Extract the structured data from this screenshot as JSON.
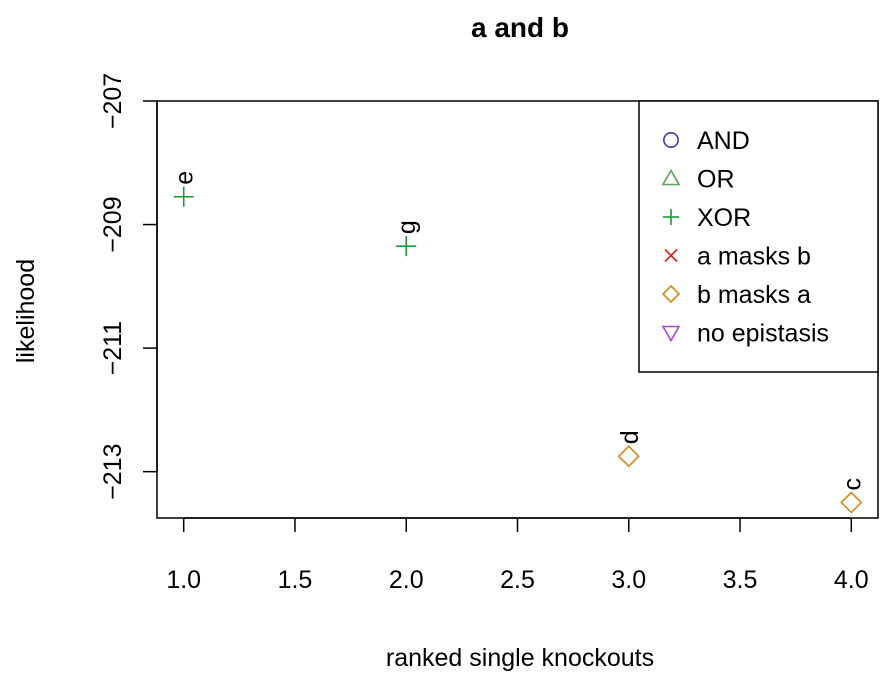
{
  "chart_data": {
    "type": "scatter",
    "title": "a and b",
    "xlabel": "ranked single knockouts",
    "ylabel": "likelihood",
    "xlim": [
      0.88,
      4.12
    ],
    "ylim": [
      -213.75,
      -207.0
    ],
    "x_ticks": [
      1.0,
      1.5,
      2.0,
      2.5,
      3.0,
      3.5,
      4.0
    ],
    "x_tick_labels": [
      "1.0",
      "1.5",
      "2.0",
      "2.5",
      "3.0",
      "3.5",
      "4.0"
    ],
    "y_ticks": [
      -207,
      -209,
      -211,
      -213
    ],
    "y_tick_labels": [
      "−207",
      "−209",
      "−211",
      "−213"
    ],
    "grid": false,
    "legend_position": "top-right",
    "legend": [
      {
        "label": "AND",
        "symbol": "circle",
        "color": "#3b3bb3"
      },
      {
        "label": "OR",
        "symbol": "triangle-up",
        "color": "#5aa05a"
      },
      {
        "label": "XOR",
        "symbol": "plus",
        "color": "#1a9a3a"
      },
      {
        "label": "a masks b",
        "symbol": "cross",
        "color": "#e31a1c"
      },
      {
        "label": "b masks a",
        "symbol": "diamond",
        "color": "#d9861a"
      },
      {
        "label": "no epistasis",
        "symbol": "triangle-down",
        "color": "#a64ac9"
      }
    ],
    "points": [
      {
        "x": 1,
        "y": -208.55,
        "label": "e",
        "symbol": "plus",
        "color": "#1a9a3a"
      },
      {
        "x": 2,
        "y": -209.35,
        "label": "g",
        "symbol": "plus",
        "color": "#1a9a3a"
      },
      {
        "x": 3,
        "y": -212.75,
        "label": "d",
        "symbol": "diamond",
        "color": "#d9861a"
      },
      {
        "x": 4,
        "y": -213.5,
        "label": "c",
        "symbol": "diamond",
        "color": "#d9861a"
      }
    ]
  }
}
